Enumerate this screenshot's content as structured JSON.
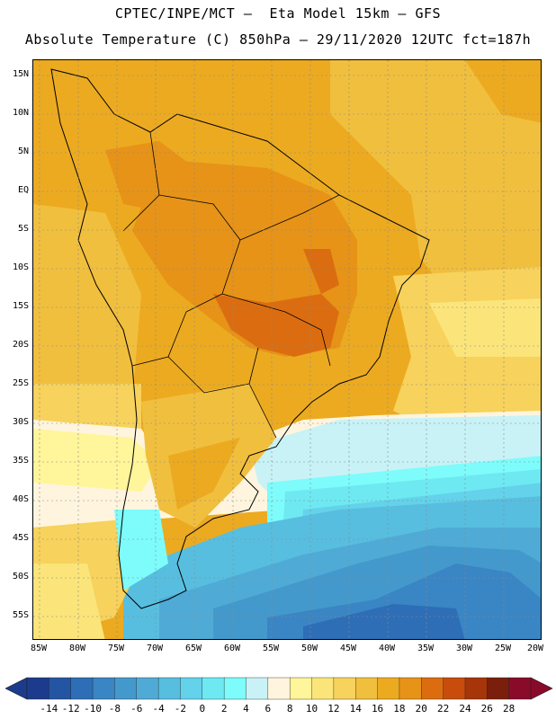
{
  "header": {
    "line1": "CPTEC/INPE/MCT –  Eta Model 15km – GFS",
    "line2": "Absolute Temperature (C) 850hPa – 29/11/2020 12UTC fct=187h"
  },
  "map": {
    "lat_labels": [
      "15N",
      "10N",
      "5N",
      "EQ",
      "5S",
      "10S",
      "15S",
      "20S",
      "25S",
      "30S",
      "35S",
      "40S",
      "45S",
      "50S",
      "55S"
    ],
    "lon_labels": [
      "85W",
      "80W",
      "75W",
      "70W",
      "65W",
      "60W",
      "55W",
      "50W",
      "45W",
      "40W",
      "35W",
      "30W",
      "25W",
      "20W"
    ]
  },
  "colorbar": {
    "labels": [
      "-14",
      "-12",
      "-10",
      "-8",
      "-6",
      "-4",
      "-2",
      "0",
      "2",
      "4",
      "6",
      "8",
      "10",
      "12",
      "14",
      "16",
      "18",
      "20",
      "22",
      "24",
      "26",
      "28"
    ],
    "colors": [
      "#1c3b8c",
      "#2455a3",
      "#2e6eb6",
      "#3a85c4",
      "#4499cc",
      "#4fabd6",
      "#58bedf",
      "#63d2ea",
      "#6ee9f2",
      "#7dfcfb",
      "#c8f2f6",
      "#fff5de",
      "#fff59a",
      "#fbe57a",
      "#f7d25c",
      "#f1bf3e",
      "#ecaa20",
      "#e69318",
      "#db6d10",
      "#c84c0b",
      "#a63509",
      "#7a1f0c",
      "#8a0a2a"
    ]
  }
}
